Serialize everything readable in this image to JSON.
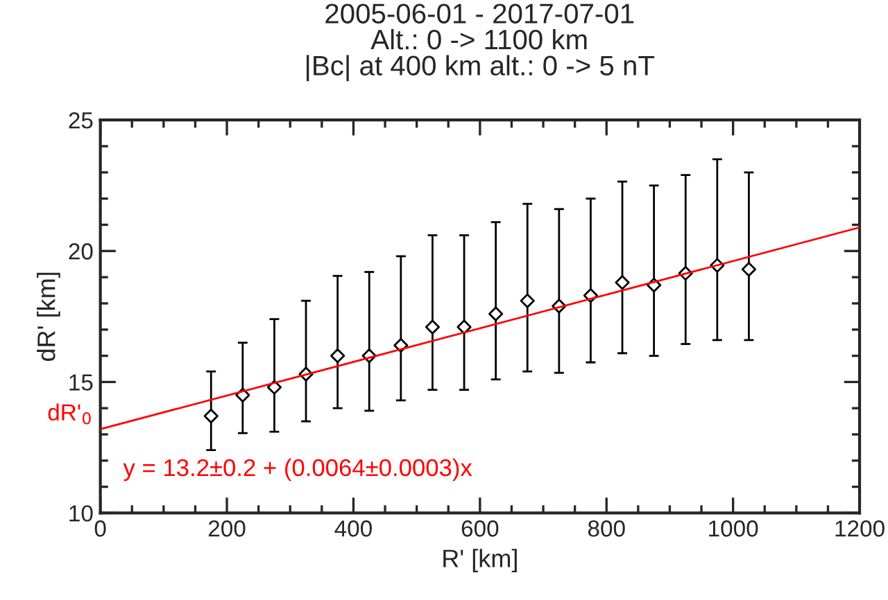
{
  "chart_data": {
    "type": "scatter",
    "title": "2005-06-01 - 2017-07-01",
    "subtitle": "Alt.: 0 -> 1100 km\n|Bc| at 400 km alt.: 0 -> 5 nT",
    "xlabel": "R' [km]",
    "ylabel": "dR' [km]",
    "x": [
      175,
      225,
      275,
      325,
      375,
      425,
      475,
      525,
      575,
      625,
      675,
      725,
      775,
      825,
      875,
      925,
      975,
      1025
    ],
    "series": [
      {
        "color": "#000000",
        "marker": "diamond",
        "values": [
          13.7,
          14.5,
          14.8,
          15.3,
          16.0,
          16.0,
          16.4,
          17.1,
          17.1,
          17.6,
          18.1,
          17.9,
          18.3,
          18.8,
          18.7,
          19.15,
          19.45,
          19.3
        ],
        "errors": [
          [
            12.4,
            15.4
          ],
          [
            13.05,
            16.5
          ],
          [
            13.1,
            17.4
          ],
          [
            13.5,
            18.1
          ],
          [
            14.0,
            19.05
          ],
          [
            13.9,
            19.2
          ],
          [
            14.3,
            19.8
          ],
          [
            14.7,
            20.6
          ],
          [
            14.7,
            20.6
          ],
          [
            15.1,
            21.1
          ],
          [
            15.4,
            21.8
          ],
          [
            15.35,
            21.6
          ],
          [
            15.75,
            22.0
          ],
          [
            16.1,
            22.65
          ],
          [
            16.0,
            22.5
          ],
          [
            16.45,
            22.9
          ],
          [
            16.6,
            23.5
          ],
          [
            16.6,
            23.0
          ]
        ]
      },
      {
        "type": "line",
        "color": "#ff0000",
        "x": [
          0,
          1200
        ],
        "values": [
          13.2,
          20.9
        ]
      }
    ],
    "annotations": [
      {
        "text": "dR'$_{0}$",
        "x": 0,
        "y": 13.2
      },
      "y = 13.2±0.2 + (0.0064±0.0003)x"
    ],
    "xlim": [
      0,
      1200
    ],
    "ylim": [
      10,
      25
    ],
    "xticks": [
      0,
      200,
      400,
      600,
      800,
      1000,
      1200
    ],
    "yticks": [
      10,
      15,
      20,
      25
    ],
    "grid": false
  }
}
